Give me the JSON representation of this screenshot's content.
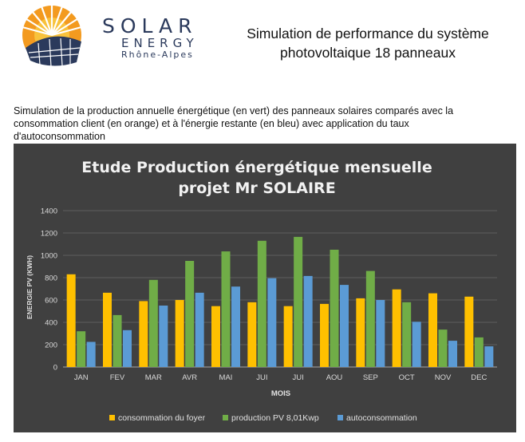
{
  "header": {
    "brand_name": "SOLAR",
    "brand_sub": "ENERGY",
    "brand_region": "Rhône-Alpes",
    "title_line1": "Simulation de performance du système",
    "title_line2": "photovoltaique 18 panneaux"
  },
  "description": {
    "line1": "Simulation de la production annuelle énergétique (en vert) des panneaux solaires comparés avec la",
    "line2": "consommation client (en orange) et à l'énergie restante (en bleu) avec application du taux",
    "line3": "d'autoconsommation"
  },
  "colors": {
    "consommation": "#ffc000",
    "production": "#70ad47",
    "autoconsommation": "#5b9bd5",
    "chart_background": "#404040",
    "brand_navy": "#2b3a5c",
    "brand_orange": "#f39a1f"
  },
  "chart_data": {
    "type": "bar",
    "title_line1": "Etude Production énergétique mensuelle",
    "title_line2": "projet Mr SOLAIRE",
    "xlabel": "MOIS",
    "ylabel": "ENERGIE PV (KWH)",
    "ylim": [
      0,
      1400
    ],
    "yticks": [
      0,
      200,
      400,
      600,
      800,
      1000,
      1200,
      1400
    ],
    "grid": true,
    "legend_position": "bottom",
    "categories": [
      "JAN",
      "FEV",
      "MAR",
      "AVR",
      "MAI",
      "JUI",
      "JUI",
      "AOU",
      "SEP",
      "OCT",
      "NOV",
      "DEC"
    ],
    "series": [
      {
        "name": "consommation du foyer",
        "color": "#ffc000",
        "values": [
          830,
          665,
          590,
          600,
          545,
          580,
          545,
          565,
          615,
          695,
          660,
          630
        ]
      },
      {
        "name": "production PV 8,01Kwp",
        "color": "#70ad47",
        "values": [
          320,
          465,
          780,
          950,
          1035,
          1130,
          1165,
          1050,
          860,
          580,
          335,
          265
        ]
      },
      {
        "name": "autoconsommation",
        "color": "#5b9bd5",
        "values": [
          225,
          330,
          550,
          665,
          720,
          795,
          815,
          735,
          600,
          405,
          235,
          185
        ]
      }
    ]
  }
}
